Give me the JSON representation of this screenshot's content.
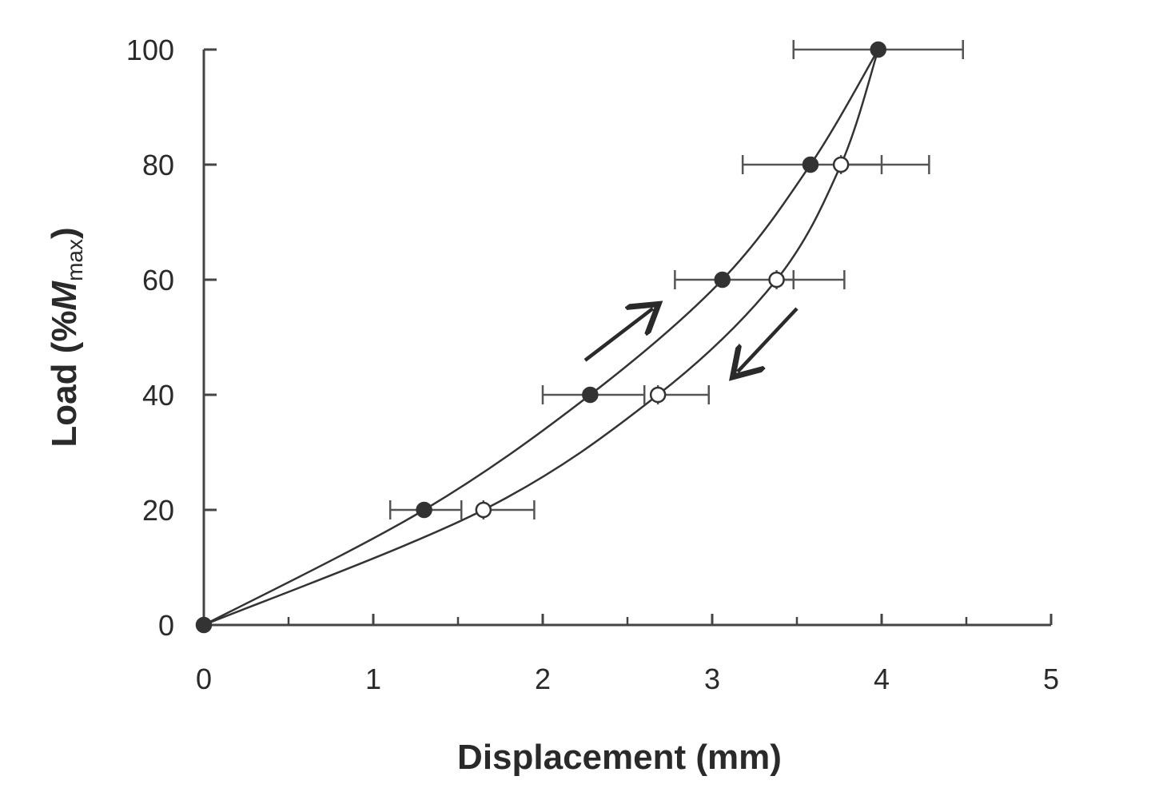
{
  "chart_data": {
    "type": "scatter",
    "title": "",
    "xlabel": "Displacement (mm)",
    "ylabel": {
      "prefix": "Load (%",
      "symbol": "M",
      "subscript": "max",
      "suffix": ")"
    },
    "xlim": [
      0,
      5
    ],
    "ylim": [
      0,
      100
    ],
    "x_ticks": [
      0,
      1,
      2,
      3,
      4,
      5
    ],
    "x_minor_ticks": [
      0.5,
      1.5,
      2.5,
      3.5,
      4.5
    ],
    "y_ticks": [
      0,
      20,
      40,
      60,
      80,
      100
    ],
    "grid": false,
    "legend": "none",
    "series": [
      {
        "key": "loading",
        "marker": "filled",
        "color": "#333333",
        "points": [
          {
            "x": 0,
            "y": 0,
            "xerr": null
          },
          {
            "x": 1.3,
            "y": 20,
            "xerr": [
              1.1,
              1.52
            ]
          },
          {
            "x": 2.28,
            "y": 40,
            "xerr": [
              2.0,
              2.6
            ]
          },
          {
            "x": 3.06,
            "y": 60,
            "xerr": [
              2.78,
              3.48
            ]
          },
          {
            "x": 3.58,
            "y": 80,
            "xerr": [
              3.18,
              4.0
            ]
          },
          {
            "x": 3.98,
            "y": 100,
            "xerr": [
              3.48,
              4.48
            ]
          }
        ]
      },
      {
        "key": "unloading",
        "marker": "open",
        "color": "#333333",
        "points": [
          {
            "x": 3.98,
            "y": 100,
            "xerr": null
          },
          {
            "x": 3.76,
            "y": 80,
            "xerr": [
              3.76,
              4.28
            ]
          },
          {
            "x": 3.38,
            "y": 60,
            "xerr": [
              3.38,
              3.78
            ]
          },
          {
            "x": 2.68,
            "y": 40,
            "xerr": [
              2.68,
              2.98
            ]
          },
          {
            "x": 1.65,
            "y": 20,
            "xerr": [
              1.65,
              1.95
            ]
          },
          {
            "x": 0,
            "y": 0,
            "xerr": null
          }
        ]
      }
    ],
    "annotations": [
      {
        "type": "arrow",
        "direction": "up-right",
        "meaning": "loading",
        "from": [
          2.25,
          46
        ],
        "to": [
          2.65,
          55
        ]
      },
      {
        "type": "arrow",
        "direction": "down-left",
        "meaning": "unloading",
        "from": [
          3.5,
          55
        ],
        "to": [
          3.15,
          44
        ]
      }
    ]
  }
}
